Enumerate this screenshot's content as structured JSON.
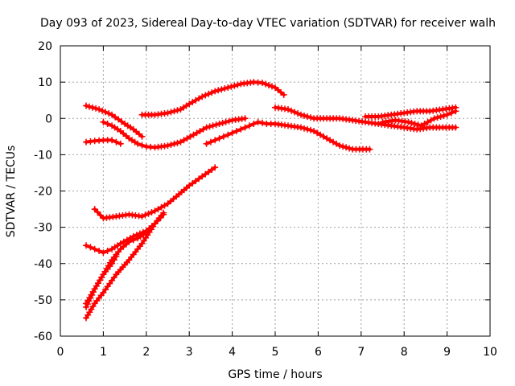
{
  "chart_data": {
    "type": "scatter",
    "title": "Day 093 of 2023, Sidereal Day-to-day VTEC variation (SDTVAR) for receiver walh",
    "xlabel": "GPS time / hours",
    "ylabel": "SDTVAR / TECUs",
    "xlim": [
      0,
      10
    ],
    "ylim": [
      -60,
      20
    ],
    "xticks": [
      0,
      1,
      2,
      3,
      4,
      5,
      6,
      7,
      8,
      9,
      10
    ],
    "yticks": [
      -60,
      -50,
      -40,
      -30,
      -20,
      -10,
      0,
      10,
      20
    ],
    "grid": true,
    "marker": "+",
    "color": "#ff0000",
    "series": [
      {
        "x": [
          0.6,
          0.9,
          1.2,
          1.5,
          1.7,
          1.9
        ],
        "y": [
          3.5,
          2.5,
          1,
          -1.5,
          -3,
          -5
        ]
      },
      {
        "x": [
          1.0,
          1.2,
          1.4,
          1.6,
          1.8,
          2.0,
          2.2,
          2.5,
          2.8,
          3.1,
          3.4,
          3.7,
          4.0,
          4.3
        ],
        "y": [
          -1,
          -2,
          -3.5,
          -5.5,
          -7,
          -7.8,
          -8,
          -7.5,
          -6.5,
          -4.5,
          -2.5,
          -1.5,
          -0.5,
          0
        ]
      },
      {
        "x": [
          0.6,
          0.8,
          1.0,
          1.2,
          1.4
        ],
        "y": [
          -6.5,
          -6.2,
          -6,
          -6,
          -7
        ]
      },
      {
        "x": [
          1.9,
          2.2,
          2.5,
          2.8,
          3.0,
          3.3,
          3.6,
          3.9,
          4.2,
          4.5,
          4.7,
          5.0,
          5.2
        ],
        "y": [
          1,
          1,
          1.5,
          2.5,
          4,
          6,
          7.5,
          8.5,
          9.5,
          10,
          9.8,
          8.5,
          6.5
        ]
      },
      {
        "x": [
          3.4,
          3.6,
          3.8,
          4.0,
          4.2,
          4.4,
          4.6,
          4.8,
          5.0,
          5.3,
          5.6,
          5.9,
          6.2,
          6.5,
          6.8,
          7.2
        ],
        "y": [
          -7,
          -6,
          -5,
          -4,
          -3,
          -2,
          -1,
          -1.5,
          -1.5,
          -2,
          -2.5,
          -3.5,
          -5.5,
          -7.5,
          -8.5,
          -8.5
        ]
      },
      {
        "x": [
          5.0,
          5.3,
          5.6,
          5.9,
          6.2,
          6.5,
          6.8,
          7.1,
          7.4,
          7.7,
          8.0,
          8.3,
          8.6,
          8.9,
          9.2
        ],
        "y": [
          3,
          2.5,
          1,
          0,
          0,
          0,
          -0.5,
          -1,
          -1.5,
          -2,
          -2.5,
          -3,
          -2.5,
          -2.5,
          -2.5
        ]
      },
      {
        "x": [
          7.1,
          7.4,
          7.7,
          8.0,
          8.3,
          8.6,
          8.9,
          9.2
        ],
        "y": [
          0.5,
          0.5,
          1,
          1.5,
          2,
          2,
          2.5,
          3
        ]
      },
      {
        "x": [
          7.5,
          7.8,
          8.1,
          8.4,
          8.7,
          9.0,
          9.2
        ],
        "y": [
          -1,
          -0.5,
          -1,
          -2,
          0,
          1,
          2
        ]
      },
      {
        "x": [
          0.8,
          1.0,
          1.3,
          1.6,
          1.9,
          2.2,
          2.5,
          2.7,
          3.0,
          3.3,
          3.6
        ],
        "y": [
          -25,
          -27.5,
          -27,
          -26.5,
          -27,
          -25.5,
          -23.5,
          -21.5,
          -18.5,
          -16,
          -13.5
        ]
      },
      {
        "x": [
          0.6,
          0.8,
          1.0,
          1.2,
          1.4,
          1.7,
          2.0,
          2.2,
          2.4
        ],
        "y": [
          -35,
          -36,
          -37,
          -36,
          -34.5,
          -32.5,
          -31,
          -29,
          -26.5
        ]
      },
      {
        "x": [
          0.6,
          0.8,
          1.0,
          1.2,
          1.4,
          1.6,
          1.8,
          2.0,
          2.2,
          2.4
        ],
        "y": [
          -52,
          -47,
          -43,
          -39,
          -36,
          -34,
          -33,
          -31.5,
          -29,
          -26
        ]
      },
      {
        "x": [
          0.6,
          0.8,
          1.0,
          1.3,
          1.6,
          1.9,
          2.2
        ],
        "y": [
          -55,
          -51,
          -48,
          -43,
          -39,
          -34.5,
          -29
        ]
      },
      {
        "x": [
          0.6,
          0.8,
          1.0,
          1.2,
          1.3
        ],
        "y": [
          -51,
          -47,
          -43,
          -40,
          -38
        ]
      }
    ]
  }
}
